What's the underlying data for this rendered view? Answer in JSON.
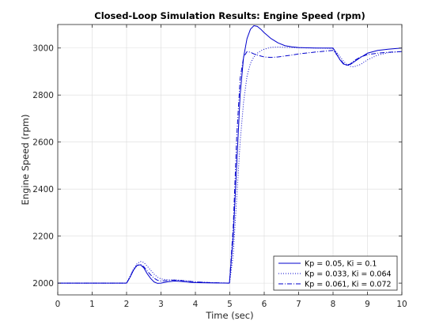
{
  "chart_data": {
    "type": "line",
    "title": "Closed-Loop Simulation Results: Engine Speed (rpm)",
    "xlabel": "Time (sec)",
    "ylabel": "Engine Speed (rpm)",
    "xlim": [
      0,
      10
    ],
    "ylim": [
      1950,
      3100
    ],
    "xticks": [
      0,
      1,
      2,
      3,
      4,
      5,
      6,
      7,
      8,
      9,
      10
    ],
    "yticks": [
      2000,
      2200,
      2400,
      2600,
      2800,
      3000
    ],
    "grid": true,
    "legend_position": "bottom-right",
    "line_color": "#0000cc",
    "series": [
      {
        "name": "Kp = 0.05, Ki = 0.1",
        "style": "solid",
        "x": [
          0,
          2.0,
          2.1,
          2.2,
          2.3,
          2.4,
          2.5,
          2.6,
          2.7,
          2.8,
          2.9,
          3.0,
          3.2,
          3.4,
          3.6,
          3.8,
          4.0,
          4.5,
          4.99,
          5.1,
          5.2,
          5.3,
          5.4,
          5.5,
          5.6,
          5.7,
          5.8,
          5.9,
          6.0,
          6.2,
          6.4,
          6.6,
          6.8,
          7.0,
          7.5,
          8.0,
          8.1,
          8.2,
          8.3,
          8.4,
          8.5,
          8.6,
          8.8,
          9.0,
          9.3,
          9.6,
          10.0
        ],
        "y": [
          2000,
          2000,
          2025,
          2055,
          2075,
          2078,
          2065,
          2040,
          2020,
          2005,
          1999,
          2000,
          2006,
          2009,
          2007,
          2004,
          2002,
          2001,
          2000,
          2200,
          2500,
          2800,
          2960,
          3040,
          3080,
          3095,
          3092,
          3080,
          3065,
          3040,
          3022,
          3010,
          3005,
          3002,
          3000,
          3000,
          2975,
          2950,
          2932,
          2927,
          2930,
          2940,
          2960,
          2978,
          2990,
          2995,
          3000
        ]
      },
      {
        "name": "Kp = 0.033, Ki = 0.064",
        "style": "dotted",
        "x": [
          0,
          2.0,
          2.1,
          2.2,
          2.3,
          2.4,
          2.5,
          2.6,
          2.7,
          2.8,
          2.9,
          3.0,
          3.2,
          3.4,
          3.6,
          3.8,
          4.0,
          4.5,
          4.99,
          5.1,
          5.2,
          5.3,
          5.4,
          5.5,
          5.6,
          5.7,
          5.8,
          5.9,
          6.0,
          6.2,
          6.4,
          6.6,
          6.8,
          7.0,
          7.5,
          8.0,
          8.1,
          8.2,
          8.3,
          8.4,
          8.5,
          8.6,
          8.8,
          9.0,
          9.3,
          9.6,
          10.0
        ],
        "y": [
          2000,
          2000,
          2030,
          2060,
          2082,
          2092,
          2088,
          2072,
          2055,
          2038,
          2025,
          2018,
          2014,
          2014,
          2012,
          2009,
          2006,
          2002,
          2000,
          2120,
          2360,
          2600,
          2770,
          2880,
          2935,
          2962,
          2978,
          2988,
          2995,
          3003,
          3004,
          3003,
          3002,
          3001,
          3000,
          2998,
          2982,
          2963,
          2945,
          2930,
          2922,
          2920,
          2930,
          2950,
          2970,
          2980,
          2985
        ]
      },
      {
        "name": "Kp = 0.061, Ki = 0.072",
        "style": "dashdot",
        "x": [
          0,
          2.0,
          2.1,
          2.2,
          2.3,
          2.4,
          2.5,
          2.6,
          2.7,
          2.8,
          2.9,
          3.0,
          3.2,
          3.4,
          3.6,
          3.8,
          4.0,
          4.5,
          4.99,
          5.1,
          5.2,
          5.3,
          5.4,
          5.5,
          5.6,
          5.7,
          5.8,
          5.9,
          6.0,
          6.2,
          6.4,
          6.6,
          6.8,
          7.0,
          7.5,
          8.0,
          8.1,
          8.2,
          8.3,
          8.4,
          8.5,
          8.6,
          8.8,
          9.0,
          9.3,
          9.6,
          10.0
        ],
        "y": [
          2000,
          2000,
          2025,
          2055,
          2075,
          2080,
          2070,
          2052,
          2035,
          2021,
          2012,
          2009,
          2011,
          2013,
          2011,
          2008,
          2005,
          2002,
          2000,
          2240,
          2620,
          2870,
          2960,
          2985,
          2982,
          2975,
          2970,
          2966,
          2962,
          2960,
          2962,
          2966,
          2970,
          2975,
          2983,
          2990,
          2973,
          2952,
          2935,
          2928,
          2932,
          2945,
          2962,
          2972,
          2978,
          2982,
          2985
        ]
      }
    ]
  }
}
